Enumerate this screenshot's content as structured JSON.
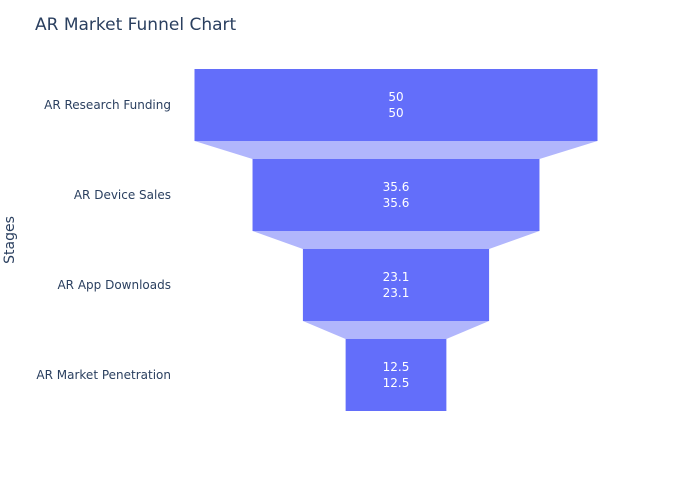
{
  "chart_data": {
    "type": "funnel",
    "title": "AR Market Funnel Chart",
    "ylabel": "Stages",
    "xlabel": "",
    "categories": [
      "AR Research Funding",
      "AR Device Sales",
      "AR App Downloads",
      "AR Market Penetration"
    ],
    "values": [
      50,
      35.6,
      23.1,
      12.5
    ],
    "value_labels": [
      "50",
      "35.6",
      "23.1",
      "12.5"
    ],
    "text_info": "value and value",
    "colors": {
      "bar": "#636efa",
      "connector": "#b1b6fc",
      "text": "#2a3f5f",
      "data_label": "#ffffff",
      "background": "#ffffff"
    }
  }
}
